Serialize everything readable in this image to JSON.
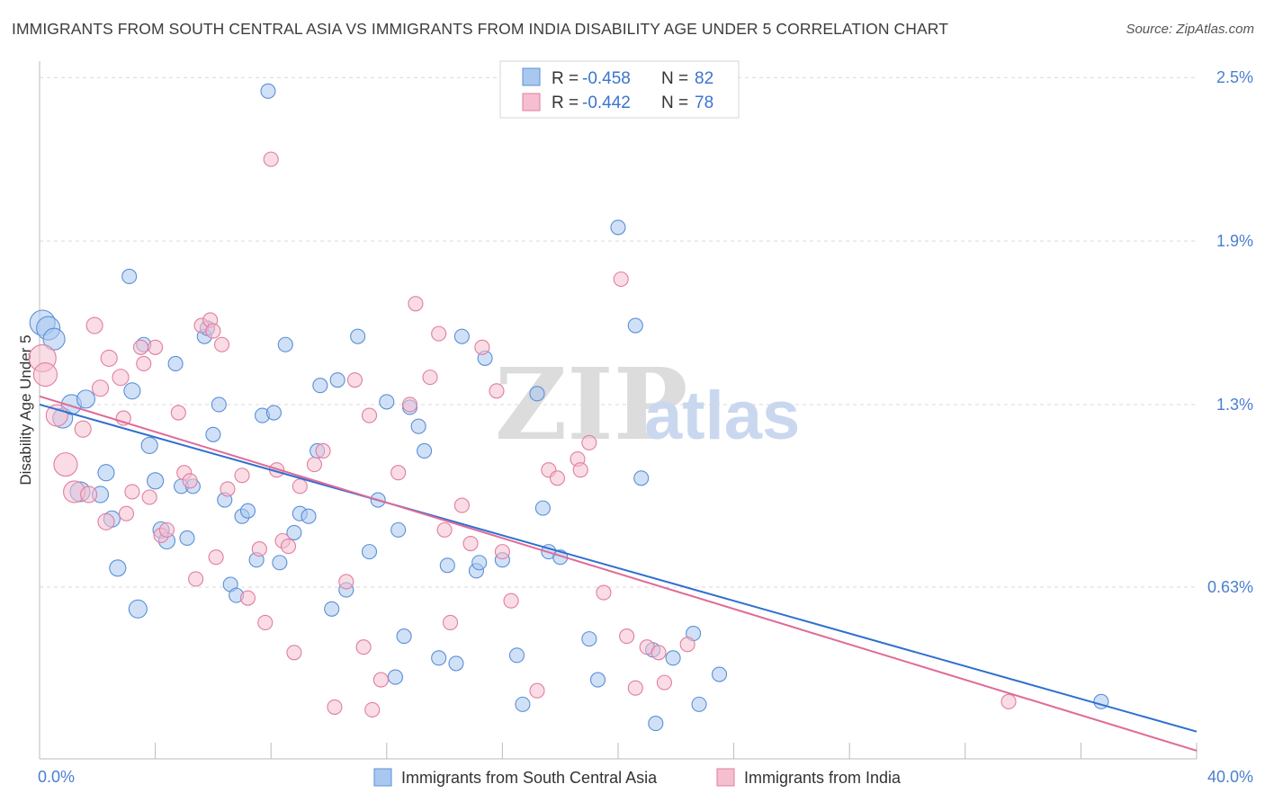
{
  "header": {
    "title": "IMMIGRANTS FROM SOUTH CENTRAL ASIA VS IMMIGRANTS FROM INDIA DISABILITY AGE UNDER 5 CORRELATION CHART",
    "source": "Source: ZipAtlas.com"
  },
  "watermark": {
    "zip": "ZIP",
    "atlas": "atlas"
  },
  "legend": {
    "series1": {
      "r_label": "R = ",
      "r_value": "-0.458",
      "n_label": "N = ",
      "n_value": "82"
    },
    "series2": {
      "r_label": "R = ",
      "r_value": "-0.442",
      "n_label": "N = ",
      "n_value": "78"
    }
  },
  "colors": {
    "blue_fill": "#a9c8f0",
    "blue_stroke": "#5b8fd6",
    "blue_line": "#2f6fd0",
    "pink_fill": "#f6bfd0",
    "pink_stroke": "#e07ea0",
    "pink_line": "#e06a98",
    "grid": "#d9d9d9",
    "axis_text": "#4a7fd0"
  },
  "chart_data": {
    "type": "scatter",
    "title": "IMMIGRANTS FROM SOUTH CENTRAL ASIA VS IMMIGRANTS FROM INDIA DISABILITY AGE UNDER 5 CORRELATION CHART",
    "xlabel": "",
    "ylabel": "Disability Age Under 5",
    "xlim": [
      0,
      40
    ],
    "ylim": [
      0,
      2.56
    ],
    "x_tick_labels": [
      "0.0%",
      "40.0%"
    ],
    "y_ticks": [
      0.63,
      1.3,
      1.9,
      2.5
    ],
    "y_tick_labels": [
      "0.63%",
      "1.3%",
      "1.9%",
      "2.5%"
    ],
    "grid": true,
    "legend_position": "top-center",
    "series": [
      {
        "name": "Immigrants from South Central Asia",
        "color": "#a9c8f0",
        "r": -0.458,
        "n": 82,
        "trend": {
          "x": [
            0,
            40
          ],
          "y": [
            1.3,
            0.1
          ]
        },
        "points": [
          {
            "x": 0.1,
            "y": 1.6,
            "s": 14
          },
          {
            "x": 0.3,
            "y": 1.58,
            "s": 13
          },
          {
            "x": 0.5,
            "y": 1.54,
            "s": 12
          },
          {
            "x": 0.8,
            "y": 1.25,
            "s": 11
          },
          {
            "x": 1.1,
            "y": 1.3,
            "s": 11
          },
          {
            "x": 1.6,
            "y": 1.32,
            "s": 10
          },
          {
            "x": 1.4,
            "y": 0.98,
            "s": 11
          },
          {
            "x": 2.1,
            "y": 0.97,
            "s": 9
          },
          {
            "x": 2.3,
            "y": 1.05,
            "s": 9
          },
          {
            "x": 2.5,
            "y": 0.88,
            "s": 9
          },
          {
            "x": 2.7,
            "y": 0.7,
            "s": 9
          },
          {
            "x": 3.1,
            "y": 1.77,
            "s": 8
          },
          {
            "x": 3.2,
            "y": 1.35,
            "s": 9
          },
          {
            "x": 3.4,
            "y": 0.55,
            "s": 10
          },
          {
            "x": 3.6,
            "y": 1.52,
            "s": 8
          },
          {
            "x": 3.8,
            "y": 1.15,
            "s": 9
          },
          {
            "x": 4.0,
            "y": 1.02,
            "s": 9
          },
          {
            "x": 4.2,
            "y": 0.84,
            "s": 9
          },
          {
            "x": 4.4,
            "y": 0.8,
            "s": 9
          },
          {
            "x": 4.7,
            "y": 1.45,
            "s": 8
          },
          {
            "x": 4.9,
            "y": 1.0,
            "s": 8
          },
          {
            "x": 5.1,
            "y": 0.81,
            "s": 8
          },
          {
            "x": 5.3,
            "y": 1.0,
            "s": 8
          },
          {
            "x": 5.7,
            "y": 1.55,
            "s": 8
          },
          {
            "x": 5.8,
            "y": 1.58,
            "s": 8
          },
          {
            "x": 6.0,
            "y": 1.19,
            "s": 8
          },
          {
            "x": 6.2,
            "y": 1.3,
            "s": 8
          },
          {
            "x": 6.4,
            "y": 0.95,
            "s": 8
          },
          {
            "x": 6.6,
            "y": 0.64,
            "s": 8
          },
          {
            "x": 6.8,
            "y": 0.6,
            "s": 8
          },
          {
            "x": 7.0,
            "y": 0.89,
            "s": 8
          },
          {
            "x": 7.2,
            "y": 0.91,
            "s": 8
          },
          {
            "x": 7.5,
            "y": 0.73,
            "s": 8
          },
          {
            "x": 7.7,
            "y": 1.26,
            "s": 8
          },
          {
            "x": 7.9,
            "y": 2.45,
            "s": 8
          },
          {
            "x": 8.1,
            "y": 1.27,
            "s": 8
          },
          {
            "x": 8.3,
            "y": 0.72,
            "s": 8
          },
          {
            "x": 8.5,
            "y": 1.52,
            "s": 8
          },
          {
            "x": 8.8,
            "y": 0.83,
            "s": 8
          },
          {
            "x": 9.0,
            "y": 0.9,
            "s": 8
          },
          {
            "x": 9.3,
            "y": 0.89,
            "s": 8
          },
          {
            "x": 9.6,
            "y": 1.13,
            "s": 8
          },
          {
            "x": 9.7,
            "y": 1.37,
            "s": 8
          },
          {
            "x": 10.1,
            "y": 0.55,
            "s": 8
          },
          {
            "x": 10.3,
            "y": 1.39,
            "s": 8
          },
          {
            "x": 10.6,
            "y": 0.62,
            "s": 8
          },
          {
            "x": 11.0,
            "y": 1.55,
            "s": 8
          },
          {
            "x": 11.4,
            "y": 0.76,
            "s": 8
          },
          {
            "x": 11.7,
            "y": 0.95,
            "s": 8
          },
          {
            "x": 12.0,
            "y": 1.31,
            "s": 8
          },
          {
            "x": 12.3,
            "y": 0.3,
            "s": 8
          },
          {
            "x": 12.6,
            "y": 0.45,
            "s": 8
          },
          {
            "x": 12.8,
            "y": 1.29,
            "s": 8
          },
          {
            "x": 13.1,
            "y": 1.22,
            "s": 8
          },
          {
            "x": 13.3,
            "y": 1.13,
            "s": 8
          },
          {
            "x": 13.8,
            "y": 0.37,
            "s": 8
          },
          {
            "x": 14.1,
            "y": 0.71,
            "s": 8
          },
          {
            "x": 14.4,
            "y": 0.35,
            "s": 8
          },
          {
            "x": 14.6,
            "y": 1.55,
            "s": 8
          },
          {
            "x": 15.1,
            "y": 0.69,
            "s": 8
          },
          {
            "x": 15.4,
            "y": 1.47,
            "s": 8
          },
          {
            "x": 16.0,
            "y": 0.73,
            "s": 8
          },
          {
            "x": 16.5,
            "y": 0.38,
            "s": 8
          },
          {
            "x": 17.2,
            "y": 1.34,
            "s": 8
          },
          {
            "x": 17.6,
            "y": 0.76,
            "s": 8
          },
          {
            "x": 18.0,
            "y": 0.74,
            "s": 8
          },
          {
            "x": 19.0,
            "y": 0.44,
            "s": 8
          },
          {
            "x": 19.3,
            "y": 0.29,
            "s": 8
          },
          {
            "x": 20.0,
            "y": 1.95,
            "s": 8
          },
          {
            "x": 20.6,
            "y": 1.59,
            "s": 8
          },
          {
            "x": 20.8,
            "y": 1.03,
            "s": 8
          },
          {
            "x": 21.2,
            "y": 0.4,
            "s": 8
          },
          {
            "x": 21.9,
            "y": 0.37,
            "s": 8
          },
          {
            "x": 22.6,
            "y": 0.46,
            "s": 8
          },
          {
            "x": 23.5,
            "y": 0.31,
            "s": 8
          },
          {
            "x": 36.7,
            "y": 0.21,
            "s": 8
          },
          {
            "x": 12.4,
            "y": 0.84,
            "s": 8
          },
          {
            "x": 15.2,
            "y": 0.72,
            "s": 8
          },
          {
            "x": 16.7,
            "y": 0.2,
            "s": 8
          },
          {
            "x": 17.4,
            "y": 0.92,
            "s": 8
          },
          {
            "x": 21.3,
            "y": 0.13,
            "s": 8
          },
          {
            "x": 22.8,
            "y": 0.2,
            "s": 8
          }
        ]
      },
      {
        "name": "Immigrants from India",
        "color": "#f6bfd0",
        "r": -0.442,
        "n": 78,
        "trend": {
          "x": [
            0,
            40
          ],
          "y": [
            1.33,
            0.03
          ]
        },
        "points": [
          {
            "x": 0.1,
            "y": 1.47,
            "s": 15
          },
          {
            "x": 0.2,
            "y": 1.41,
            "s": 13
          },
          {
            "x": 0.6,
            "y": 1.26,
            "s": 12
          },
          {
            "x": 0.9,
            "y": 1.08,
            "s": 13
          },
          {
            "x": 1.2,
            "y": 0.98,
            "s": 12
          },
          {
            "x": 1.5,
            "y": 1.21,
            "s": 9
          },
          {
            "x": 1.7,
            "y": 0.97,
            "s": 9
          },
          {
            "x": 1.9,
            "y": 1.59,
            "s": 9
          },
          {
            "x": 2.1,
            "y": 1.36,
            "s": 9
          },
          {
            "x": 2.3,
            "y": 0.87,
            "s": 9
          },
          {
            "x": 2.4,
            "y": 1.47,
            "s": 9
          },
          {
            "x": 2.8,
            "y": 1.4,
            "s": 9
          },
          {
            "x": 2.9,
            "y": 1.25,
            "s": 8
          },
          {
            "x": 3.0,
            "y": 0.9,
            "s": 8
          },
          {
            "x": 3.2,
            "y": 0.98,
            "s": 8
          },
          {
            "x": 3.5,
            "y": 1.51,
            "s": 8
          },
          {
            "x": 3.6,
            "y": 1.45,
            "s": 8
          },
          {
            "x": 3.8,
            "y": 0.96,
            "s": 8
          },
          {
            "x": 4.0,
            "y": 1.51,
            "s": 8
          },
          {
            "x": 4.2,
            "y": 0.82,
            "s": 8
          },
          {
            "x": 4.4,
            "y": 0.84,
            "s": 8
          },
          {
            "x": 4.8,
            "y": 1.27,
            "s": 8
          },
          {
            "x": 5.0,
            "y": 1.05,
            "s": 8
          },
          {
            "x": 5.2,
            "y": 1.02,
            "s": 8
          },
          {
            "x": 5.4,
            "y": 0.66,
            "s": 8
          },
          {
            "x": 5.6,
            "y": 1.59,
            "s": 8
          },
          {
            "x": 5.9,
            "y": 1.61,
            "s": 8
          },
          {
            "x": 6.0,
            "y": 1.57,
            "s": 8
          },
          {
            "x": 6.1,
            "y": 0.74,
            "s": 8
          },
          {
            "x": 6.3,
            "y": 1.52,
            "s": 8
          },
          {
            "x": 6.5,
            "y": 0.99,
            "s": 8
          },
          {
            "x": 7.0,
            "y": 1.04,
            "s": 8
          },
          {
            "x": 7.2,
            "y": 0.59,
            "s": 8
          },
          {
            "x": 7.6,
            "y": 0.77,
            "s": 8
          },
          {
            "x": 7.8,
            "y": 0.5,
            "s": 8
          },
          {
            "x": 8.0,
            "y": 2.2,
            "s": 8
          },
          {
            "x": 8.2,
            "y": 1.06,
            "s": 8
          },
          {
            "x": 8.4,
            "y": 0.8,
            "s": 8
          },
          {
            "x": 8.6,
            "y": 0.78,
            "s": 8
          },
          {
            "x": 8.8,
            "y": 0.39,
            "s": 8
          },
          {
            "x": 9.0,
            "y": 1.0,
            "s": 8
          },
          {
            "x": 9.5,
            "y": 1.08,
            "s": 8
          },
          {
            "x": 9.8,
            "y": 1.13,
            "s": 8
          },
          {
            "x": 10.2,
            "y": 0.19,
            "s": 8
          },
          {
            "x": 10.6,
            "y": 0.65,
            "s": 8
          },
          {
            "x": 10.9,
            "y": 1.39,
            "s": 8
          },
          {
            "x": 11.2,
            "y": 0.41,
            "s": 8
          },
          {
            "x": 11.4,
            "y": 1.26,
            "s": 8
          },
          {
            "x": 11.5,
            "y": 0.18,
            "s": 8
          },
          {
            "x": 11.8,
            "y": 0.29,
            "s": 8
          },
          {
            "x": 12.4,
            "y": 1.05,
            "s": 8
          },
          {
            "x": 12.8,
            "y": 1.3,
            "s": 8
          },
          {
            "x": 13.0,
            "y": 1.67,
            "s": 8
          },
          {
            "x": 13.5,
            "y": 1.4,
            "s": 8
          },
          {
            "x": 13.8,
            "y": 1.56,
            "s": 8
          },
          {
            "x": 14.0,
            "y": 0.84,
            "s": 8
          },
          {
            "x": 14.2,
            "y": 0.5,
            "s": 8
          },
          {
            "x": 14.6,
            "y": 0.93,
            "s": 8
          },
          {
            "x": 14.9,
            "y": 0.79,
            "s": 8
          },
          {
            "x": 15.3,
            "y": 1.51,
            "s": 8
          },
          {
            "x": 15.8,
            "y": 1.35,
            "s": 8
          },
          {
            "x": 16.0,
            "y": 0.76,
            "s": 8
          },
          {
            "x": 16.3,
            "y": 0.58,
            "s": 8
          },
          {
            "x": 17.2,
            "y": 0.25,
            "s": 8
          },
          {
            "x": 17.6,
            "y": 1.06,
            "s": 8
          },
          {
            "x": 17.9,
            "y": 1.03,
            "s": 8
          },
          {
            "x": 18.6,
            "y": 1.1,
            "s": 8
          },
          {
            "x": 18.7,
            "y": 1.06,
            "s": 8
          },
          {
            "x": 19.0,
            "y": 1.16,
            "s": 8
          },
          {
            "x": 19.5,
            "y": 0.61,
            "s": 8
          },
          {
            "x": 20.1,
            "y": 1.76,
            "s": 8
          },
          {
            "x": 20.3,
            "y": 0.45,
            "s": 8
          },
          {
            "x": 20.6,
            "y": 0.26,
            "s": 8
          },
          {
            "x": 21.0,
            "y": 0.41,
            "s": 8
          },
          {
            "x": 21.4,
            "y": 0.39,
            "s": 8
          },
          {
            "x": 21.6,
            "y": 0.28,
            "s": 8
          },
          {
            "x": 22.4,
            "y": 0.42,
            "s": 8
          },
          {
            "x": 33.5,
            "y": 0.21,
            "s": 8
          }
        ]
      }
    ]
  }
}
